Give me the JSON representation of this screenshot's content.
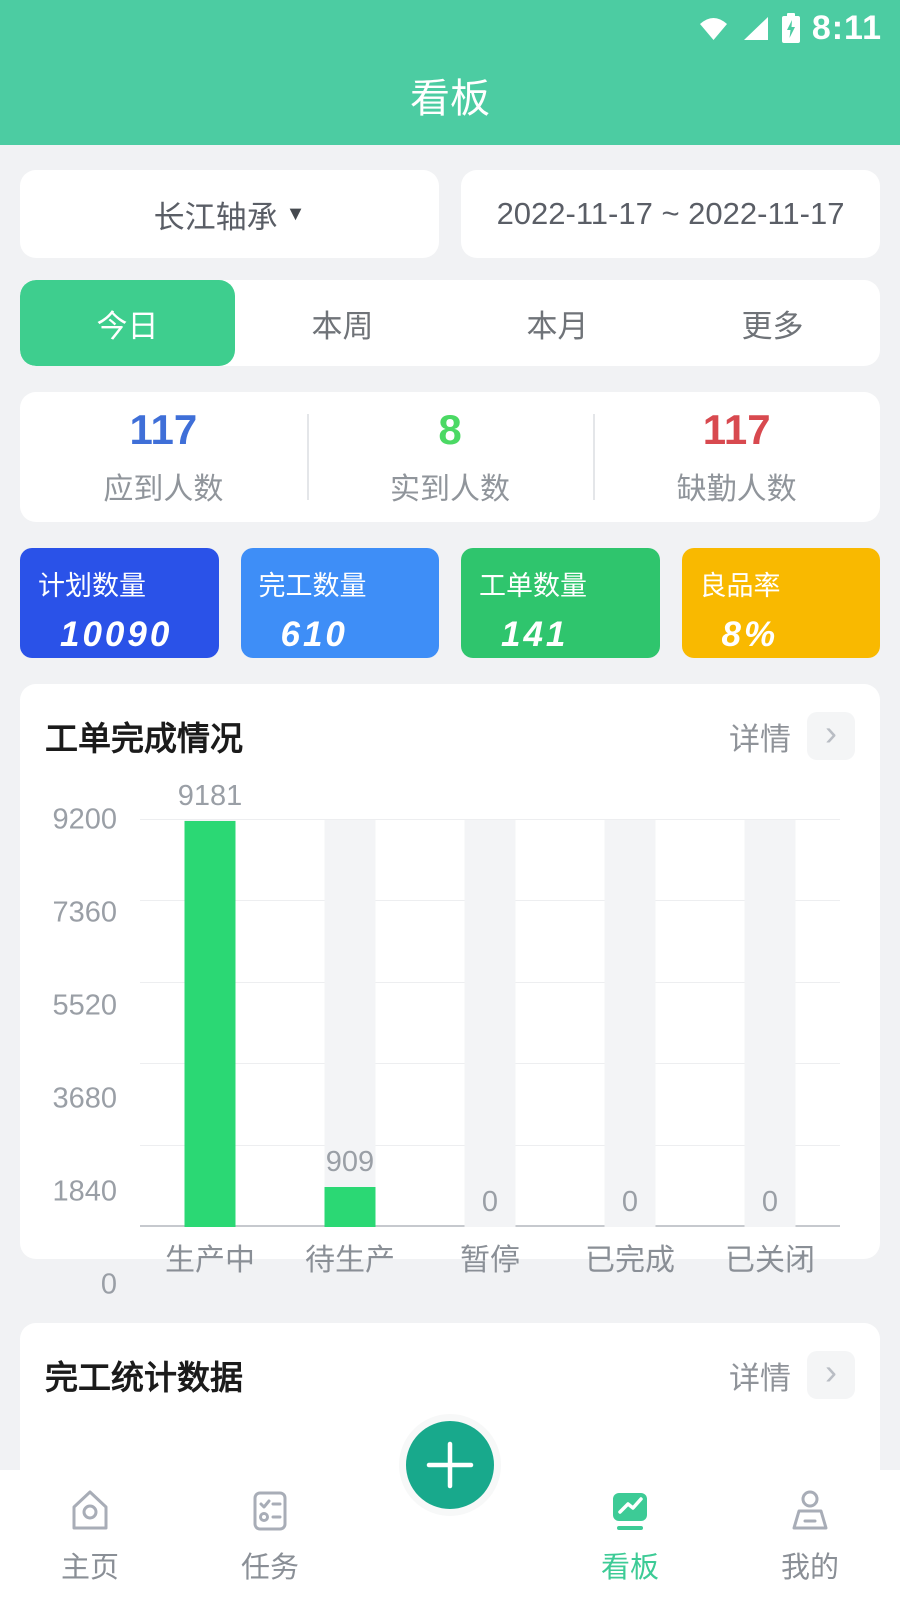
{
  "status_bar": {
    "time": "8:11"
  },
  "header": {
    "title": "看板"
  },
  "filters": {
    "company_selector": {
      "label": "长江轴承",
      "arrow": "▼"
    },
    "date_range": "2022-11-17 ~ 2022-11-17"
  },
  "tabs": {
    "items": [
      {
        "label": "今日",
        "active": true
      },
      {
        "label": "本周",
        "active": false
      },
      {
        "label": "本月",
        "active": false
      },
      {
        "label": "更多",
        "active": false
      }
    ],
    "active_color": "#3ECE8E"
  },
  "attendance": {
    "items": [
      {
        "value": "117",
        "label": "应到人数",
        "color": "#3F6FD8"
      },
      {
        "value": "8",
        "label": "实到人数",
        "color": "#4BD964"
      },
      {
        "value": "117",
        "label": "缺勤人数",
        "color": "#D8494F"
      }
    ]
  },
  "metric_cards": [
    {
      "label": "计划数量",
      "value": "10090",
      "color": "#2A52E8"
    },
    {
      "label": "完工数量",
      "value": "610",
      "color": "#3E8EF7"
    },
    {
      "label": "工单数量",
      "value": "141",
      "color": "#2FC56D"
    },
    {
      "label": "良品率",
      "value": "8%",
      "color": "#F9B900"
    }
  ],
  "work_order_panel": {
    "title": "工单完成情况",
    "detail_label": "详情",
    "chevron": "›"
  },
  "chart_data": {
    "type": "bar",
    "title": "工单完成情况",
    "categories": [
      "生产中",
      "待生产",
      "暂停",
      "已完成",
      "已关闭"
    ],
    "values": [
      9181,
      909,
      0,
      0,
      0
    ],
    "ylim": [
      0,
      9200
    ],
    "y_ticks": [
      "9200",
      "7360",
      "5520",
      "3680",
      "1840",
      "0"
    ],
    "xlabel": "",
    "ylabel": "",
    "grid": true,
    "legend": false,
    "bar_color": "#2BD874",
    "track_color": "#F3F4F6",
    "value_labels": true
  },
  "completion_panel": {
    "title": "完工统计数据",
    "detail_label": "详情",
    "chevron": "›"
  },
  "bottom_nav": {
    "items": [
      {
        "label": "主页",
        "active": false
      },
      {
        "label": "任务",
        "active": false
      },
      {
        "label": "看板",
        "active": true
      },
      {
        "label": "我的",
        "active": false
      }
    ],
    "active_color": "#3DCB96"
  }
}
